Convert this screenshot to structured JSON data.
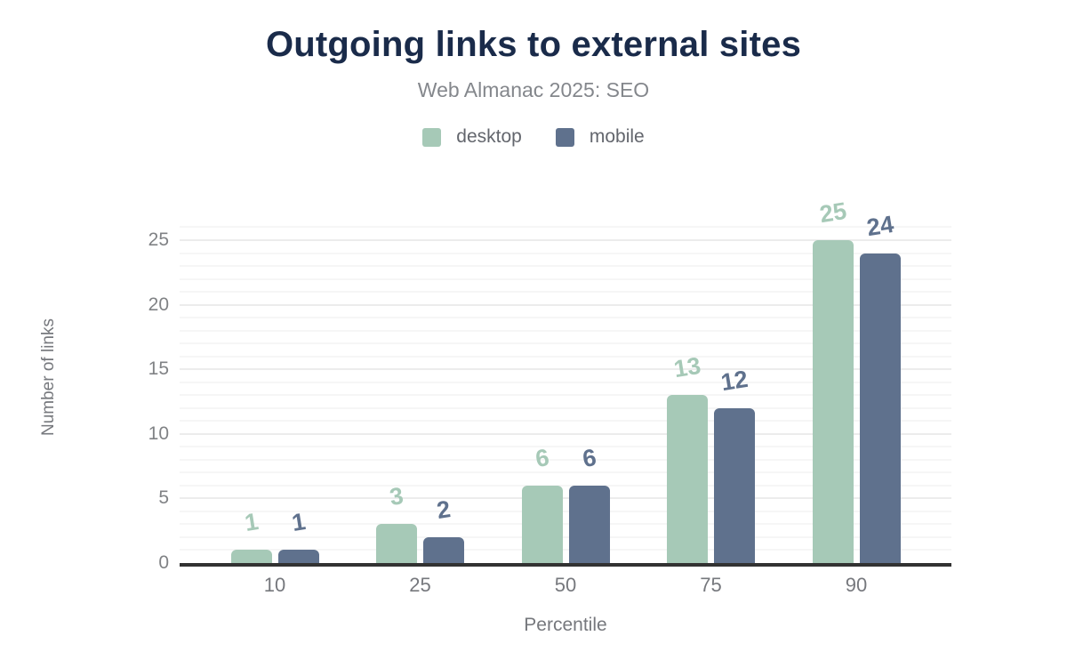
{
  "title": "Outgoing links to external sites",
  "subtitle": "Web Almanac 2025: SEO",
  "legend": [
    {
      "label": "desktop",
      "color": "#a6c9b7"
    },
    {
      "label": "mobile",
      "color": "#5f718d"
    }
  ],
  "chart_data": {
    "type": "bar",
    "title": "Outgoing links to external sites",
    "subtitle": "Web Almanac 2025: SEO",
    "categories": [
      "10",
      "25",
      "50",
      "75",
      "90"
    ],
    "series": [
      {
        "name": "desktop",
        "color": "#a6c9b7",
        "values": [
          1,
          3,
          6,
          13,
          25
        ]
      },
      {
        "name": "mobile",
        "color": "#5f718d",
        "values": [
          1,
          2,
          6,
          12,
          24
        ]
      }
    ],
    "xlabel": "Percentile",
    "ylabel": "Number of links",
    "yticks": [
      0,
      5,
      10,
      15,
      20,
      25
    ],
    "ylim": [
      0,
      26
    ],
    "grid": "horizontal minor every 1 unit, major every 5 units",
    "legend_position": "top",
    "data_labels": true
  },
  "colors": {
    "background": "#ffffff",
    "title_text": "#1a2b4a",
    "muted_text": "#76787d",
    "axis_line": "#323232",
    "grid_major": "#ececec",
    "grid_minor": "#f6f6f6"
  }
}
